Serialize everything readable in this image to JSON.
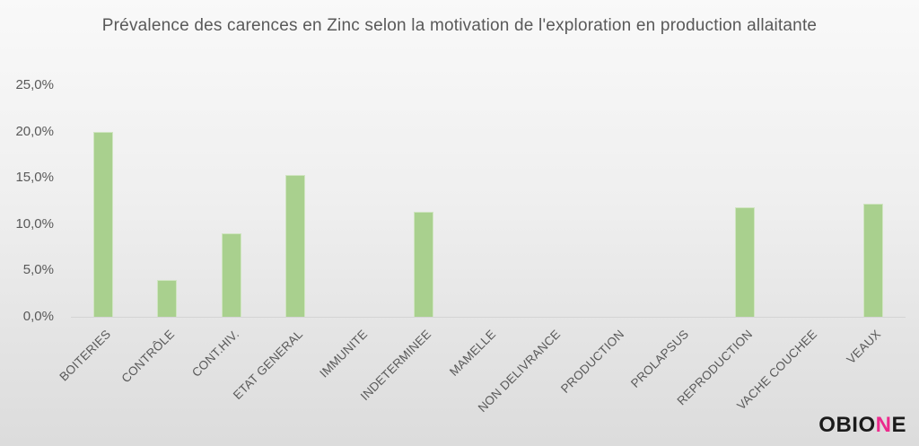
{
  "chart_data": {
    "type": "bar",
    "title": "Prévalence des carences en Zinc selon la motivation de l'exploration en production allaitante",
    "categories": [
      "BOITERIES",
      "CONTRÔLE",
      "CONT.HIV.",
      "ETAT GENERAL",
      "IMMUNITE",
      "INDETERMINEE",
      "MAMELLE",
      "NON DELIVRANCE",
      "PRODUCTION",
      "PROLAPSUS",
      "REPRODUCTION",
      "VACHE COUCHEE",
      "VEAUX"
    ],
    "values": [
      20.0,
      4.0,
      9.0,
      15.3,
      0,
      11.3,
      0,
      0,
      0,
      0,
      11.8,
      0,
      12.2
    ],
    "xlabel": "",
    "ylabel": "",
    "ylim": [
      0,
      25
    ],
    "ytick_values": [
      0,
      5,
      10,
      15,
      20,
      25
    ],
    "ytick_labels": [
      "0,0%",
      "5,0%",
      "10,0%",
      "15,0%",
      "20,0%",
      "25,0%"
    ],
    "grid": false,
    "legend_position": "none",
    "bar_color": "#a9d08e",
    "x_label_rotation_deg": 45
  },
  "branding": {
    "logo_prefix": "OBIO",
    "logo_accent": "N",
    "logo_suffix": "E",
    "accent_color": "#ec2a8c"
  }
}
